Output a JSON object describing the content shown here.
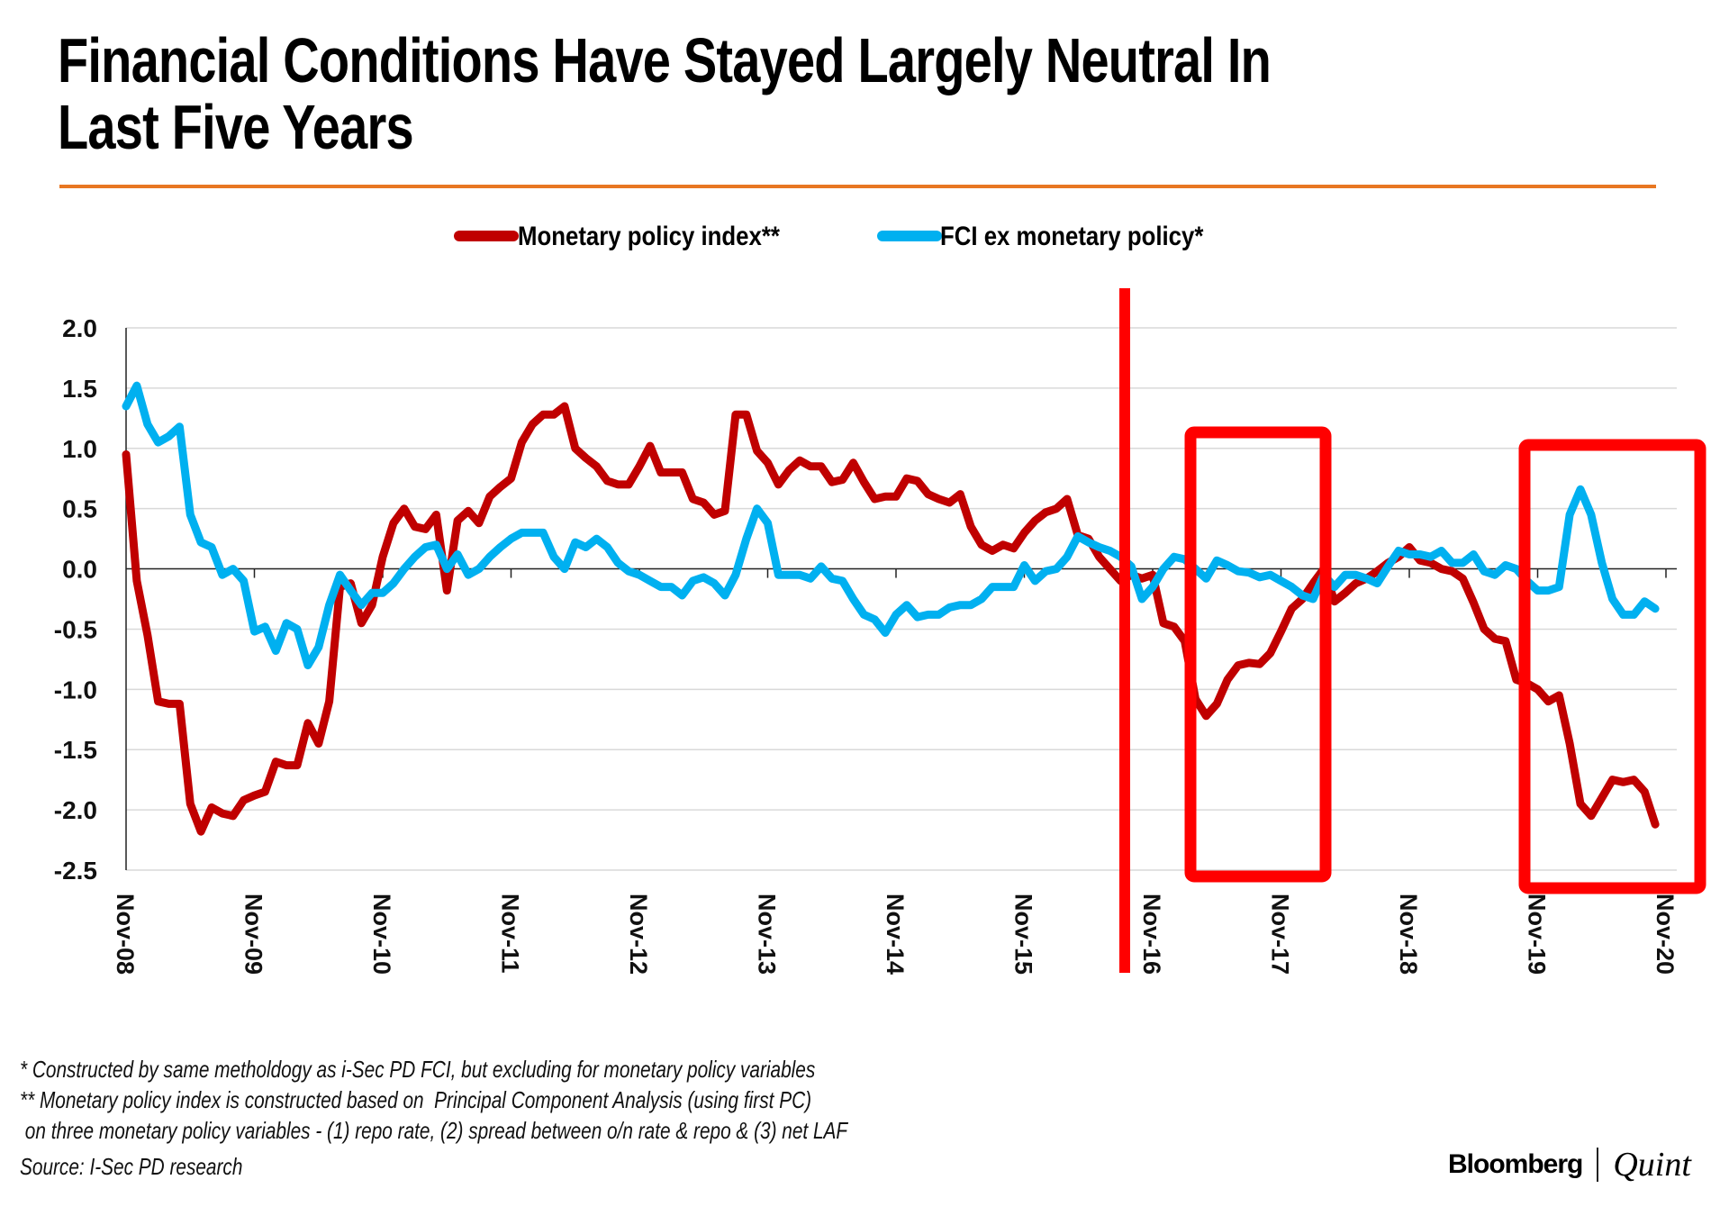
{
  "title_lines": [
    "Financial Conditions Have Stayed Largely Neutral In",
    "Last Five Years"
  ],
  "colors": {
    "accent_rule": "#e87722",
    "monetary_policy_index": "#c00000",
    "fci_ex_monetary_policy": "#00b0f0",
    "annotation": "#ff0000"
  },
  "footnotes": [
    "* Constructed by same metholdogy as i-Sec PD FCI, but excluding for monetary policy variables",
    "** Monetary policy index is constructed based on  Principal Component Analysis (using first PC)",
    " on three monetary policy variables - (1) repo rate, (2) spread between o/n rate & repo & (3) net LAF"
  ],
  "source": "Source: I-Sec PD research",
  "brand": {
    "left": "Bloomberg",
    "right": "Quint"
  },
  "chart_data": {
    "type": "line",
    "title": "Financial Conditions Have Stayed Largely Neutral In Last Five Years",
    "xlabel": "",
    "ylabel": "",
    "ylim": [
      -2.5,
      2.0
    ],
    "yticks": [
      "2.0",
      "1.5",
      "1.0",
      "0.5",
      "0.0",
      "-0.5",
      "-1.0",
      "-1.5",
      "-2.0",
      "-2.5"
    ],
    "ytick_values": [
      2.0,
      1.5,
      1.0,
      0.5,
      0.0,
      -0.5,
      -1.0,
      -1.5,
      -2.0,
      -2.5
    ],
    "x_start": "Nov-08",
    "x_end": "Nov-20",
    "x_frequency": "monthly",
    "xticks": [
      "Nov-08",
      "Nov-09",
      "Nov-10",
      "Nov-11",
      "Nov-12",
      "Nov-13",
      "Nov-14",
      "Nov-15",
      "Nov-16",
      "Nov-17",
      "Nov-18",
      "Nov-19",
      "Nov-20"
    ],
    "grid": true,
    "legend_position": "top-center",
    "series": [
      {
        "name": "Monetary policy index**",
        "color": "#c00000",
        "values": [
          0.95,
          -0.1,
          -0.55,
          -1.1,
          -1.12,
          -1.12,
          -1.95,
          -2.18,
          -1.98,
          -2.03,
          -2.05,
          -1.92,
          -1.88,
          -1.85,
          -1.6,
          -1.63,
          -1.63,
          -1.28,
          -1.45,
          -1.1,
          -0.15,
          -0.12,
          -0.45,
          -0.3,
          0.1,
          0.38,
          0.5,
          0.35,
          0.33,
          0.45,
          -0.18,
          0.4,
          0.48,
          0.38,
          0.6,
          0.68,
          0.75,
          1.05,
          1.2,
          1.28,
          1.28,
          1.35,
          1.0,
          0.92,
          0.85,
          0.73,
          0.7,
          0.7,
          0.85,
          1.02,
          0.8,
          0.8,
          0.8,
          0.58,
          0.55,
          0.45,
          0.48,
          1.28,
          1.28,
          0.98,
          0.88,
          0.7,
          0.82,
          0.9,
          0.85,
          0.85,
          0.72,
          0.74,
          0.88,
          0.72,
          0.58,
          0.6,
          0.6,
          0.75,
          0.73,
          0.62,
          0.58,
          0.55,
          0.62,
          0.35,
          0.2,
          0.15,
          0.2,
          0.17,
          0.3,
          0.4,
          0.47,
          0.5,
          0.58,
          0.28,
          0.25,
          0.1,
          0.0,
          -0.1,
          -0.05,
          -0.08,
          -0.05,
          -0.45,
          -0.48,
          -0.6,
          -1.08,
          -1.22,
          -1.12,
          -0.92,
          -0.8,
          -0.78,
          -0.79,
          -0.7,
          -0.52,
          -0.33,
          -0.25,
          -0.12,
          0.0,
          -0.27,
          -0.2,
          -0.12,
          -0.08,
          -0.02,
          0.05,
          0.1,
          0.18,
          0.07,
          0.05,
          0.0,
          -0.02,
          -0.08,
          -0.28,
          -0.5,
          -0.58,
          -0.6,
          -0.92,
          -0.95,
          -1.0,
          -1.1,
          -1.05,
          -1.45,
          -1.95,
          -2.05,
          -1.9,
          -1.75,
          -1.77,
          -1.75,
          -1.85,
          -2.12
        ]
      },
      {
        "name": "FCI ex monetary policy*",
        "color": "#00b0f0",
        "values": [
          1.35,
          1.52,
          1.2,
          1.05,
          1.1,
          1.18,
          0.45,
          0.22,
          0.18,
          -0.05,
          0.0,
          -0.1,
          -0.52,
          -0.48,
          -0.68,
          -0.45,
          -0.5,
          -0.8,
          -0.65,
          -0.3,
          -0.05,
          -0.18,
          -0.3,
          -0.2,
          -0.2,
          -0.12,
          0.0,
          0.1,
          0.18,
          0.2,
          0.0,
          0.12,
          -0.05,
          0.0,
          0.1,
          0.18,
          0.25,
          0.3,
          0.3,
          0.3,
          0.1,
          0.0,
          0.22,
          0.18,
          0.25,
          0.18,
          0.05,
          -0.02,
          -0.05,
          -0.1,
          -0.15,
          -0.15,
          -0.22,
          -0.1,
          -0.07,
          -0.12,
          -0.22,
          -0.05,
          0.25,
          0.5,
          0.38,
          -0.05,
          -0.05,
          -0.05,
          -0.08,
          0.02,
          -0.08,
          -0.1,
          -0.25,
          -0.38,
          -0.42,
          -0.53,
          -0.38,
          -0.3,
          -0.4,
          -0.38,
          -0.38,
          -0.32,
          -0.3,
          -0.3,
          -0.25,
          -0.15,
          -0.15,
          -0.15,
          0.03,
          -0.1,
          -0.02,
          0.0,
          0.1,
          0.27,
          0.22,
          0.18,
          0.15,
          0.1,
          0.02,
          -0.25,
          -0.15,
          0.0,
          0.1,
          0.08,
          0.0,
          -0.08,
          0.07,
          0.03,
          -0.02,
          -0.03,
          -0.07,
          -0.05,
          -0.1,
          -0.15,
          -0.22,
          -0.25,
          -0.05,
          -0.15,
          -0.05,
          -0.05,
          -0.08,
          -0.12,
          0.02,
          0.15,
          0.12,
          0.12,
          0.1,
          0.15,
          0.05,
          0.05,
          0.12,
          -0.02,
          -0.05,
          0.03,
          0.0,
          -0.1,
          -0.18,
          -0.18,
          -0.15,
          0.45,
          0.66,
          0.45,
          0.05,
          -0.25,
          -0.38,
          -0.38,
          -0.27,
          -0.33
        ]
      }
    ],
    "annotations": [
      {
        "type": "vertical-line",
        "at": "Jun-16",
        "color": "#ff0000"
      },
      {
        "type": "box",
        "from": "Apr-17",
        "to": "Aug-17",
        "y_range": [
          -2.5,
          1.1
        ],
        "color": "#ff0000",
        "note": "spans roughly Mar-17 to Sep-17"
      },
      {
        "type": "box",
        "from": "Nov-19",
        "to": "Nov-20",
        "y_range": [
          -2.6,
          1.0
        ],
        "color": "#ff0000"
      }
    ]
  }
}
